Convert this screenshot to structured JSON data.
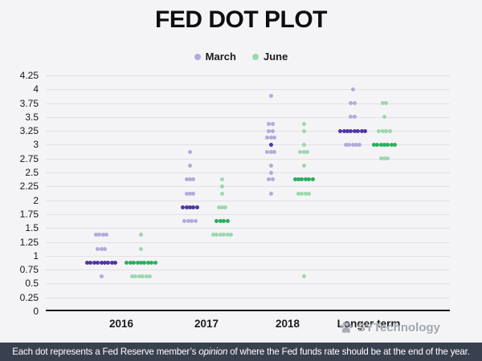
{
  "title": "FED DOT PLOT",
  "legend": {
    "items": [
      {
        "label": "March",
        "color": "#b5a9dc"
      },
      {
        "label": "June",
        "color": "#9dd7af"
      }
    ]
  },
  "watermark": {
    "text": "SYTechnology",
    "icon": "paw-icon"
  },
  "footer": {
    "pre": "Each dot represents a Fed Reserve member’s ",
    "italic": "opinion",
    "post": " of where the Fed funds rate should be at the end of the year."
  },
  "chart_data": {
    "type": "scatter",
    "subtype": "fed-dot-plot",
    "title": "FED DOT PLOT",
    "xlabel": "",
    "ylabel": "",
    "ylim": [
      0,
      4.25
    ],
    "ytick_step": 0.25,
    "ytick_labels": [
      "0",
      "0.25",
      "0.5",
      "0.75",
      "1",
      "1.25",
      "1.5",
      "1.75",
      "2",
      "2.25",
      "2.5",
      "2.75",
      "3",
      "3.25",
      "3.5",
      "3.75",
      "4",
      "4.25"
    ],
    "grid": true,
    "legend_position": "top-center",
    "categories": [
      "2016",
      "2017",
      "2018",
      "Longer term"
    ],
    "point_format": "[rate_percent, member_count, is_median_cluster]",
    "series": [
      {
        "name": "March",
        "color_light": "#b5a9dc",
        "color_dark": "#5136a4",
        "data": [
          [
            [
              1.375,
              4,
              0
            ],
            [
              1.125,
              3,
              0
            ],
            [
              0.875,
              9,
              1
            ],
            [
              0.625,
              1,
              0
            ]
          ],
          [
            [
              2.875,
              1,
              0
            ],
            [
              2.625,
              1,
              0
            ],
            [
              2.375,
              3,
              0
            ],
            [
              2.125,
              3,
              0
            ],
            [
              1.875,
              5,
              1
            ],
            [
              1.625,
              4,
              0
            ]
          ],
          [
            [
              3.875,
              1,
              0
            ],
            [
              3.375,
              2,
              0
            ],
            [
              3.25,
              2,
              0
            ],
            [
              3.125,
              3,
              0
            ],
            [
              3.0,
              1,
              1
            ],
            [
              2.875,
              3,
              0
            ],
            [
              2.625,
              1,
              0
            ],
            [
              2.5,
              1,
              0
            ],
            [
              2.375,
              2,
              0
            ],
            [
              2.125,
              1,
              0
            ]
          ],
          [
            [
              4.0,
              1,
              0
            ],
            [
              3.75,
              2,
              0
            ],
            [
              3.5,
              2,
              0
            ],
            [
              3.25,
              8,
              1
            ],
            [
              3.0,
              5,
              0
            ]
          ]
        ]
      },
      {
        "name": "June",
        "color_light": "#9dd7af",
        "color_dark": "#2bae60",
        "data": [
          [
            [
              1.375,
              1,
              0
            ],
            [
              1.125,
              1,
              0
            ],
            [
              0.875,
              9,
              1
            ],
            [
              0.625,
              6,
              0
            ]
          ],
          [
            [
              2.375,
              1,
              0
            ],
            [
              2.25,
              1,
              0
            ],
            [
              2.125,
              1,
              0
            ],
            [
              1.875,
              3,
              0
            ],
            [
              1.625,
              4,
              1
            ],
            [
              1.375,
              6,
              0
            ]
          ],
          [
            [
              3.375,
              1,
              0
            ],
            [
              3.25,
              1,
              0
            ],
            [
              3.0,
              1,
              0
            ],
            [
              2.875,
              3,
              0
            ],
            [
              2.625,
              1,
              0
            ],
            [
              2.375,
              6,
              1
            ],
            [
              2.125,
              4,
              0
            ],
            [
              0.625,
              1,
              0
            ]
          ],
          [
            [
              3.75,
              2,
              0
            ],
            [
              3.5,
              1,
              0
            ],
            [
              3.25,
              4,
              0
            ],
            [
              3.0,
              7,
              1
            ],
            [
              2.75,
              3,
              0
            ]
          ]
        ]
      }
    ]
  }
}
